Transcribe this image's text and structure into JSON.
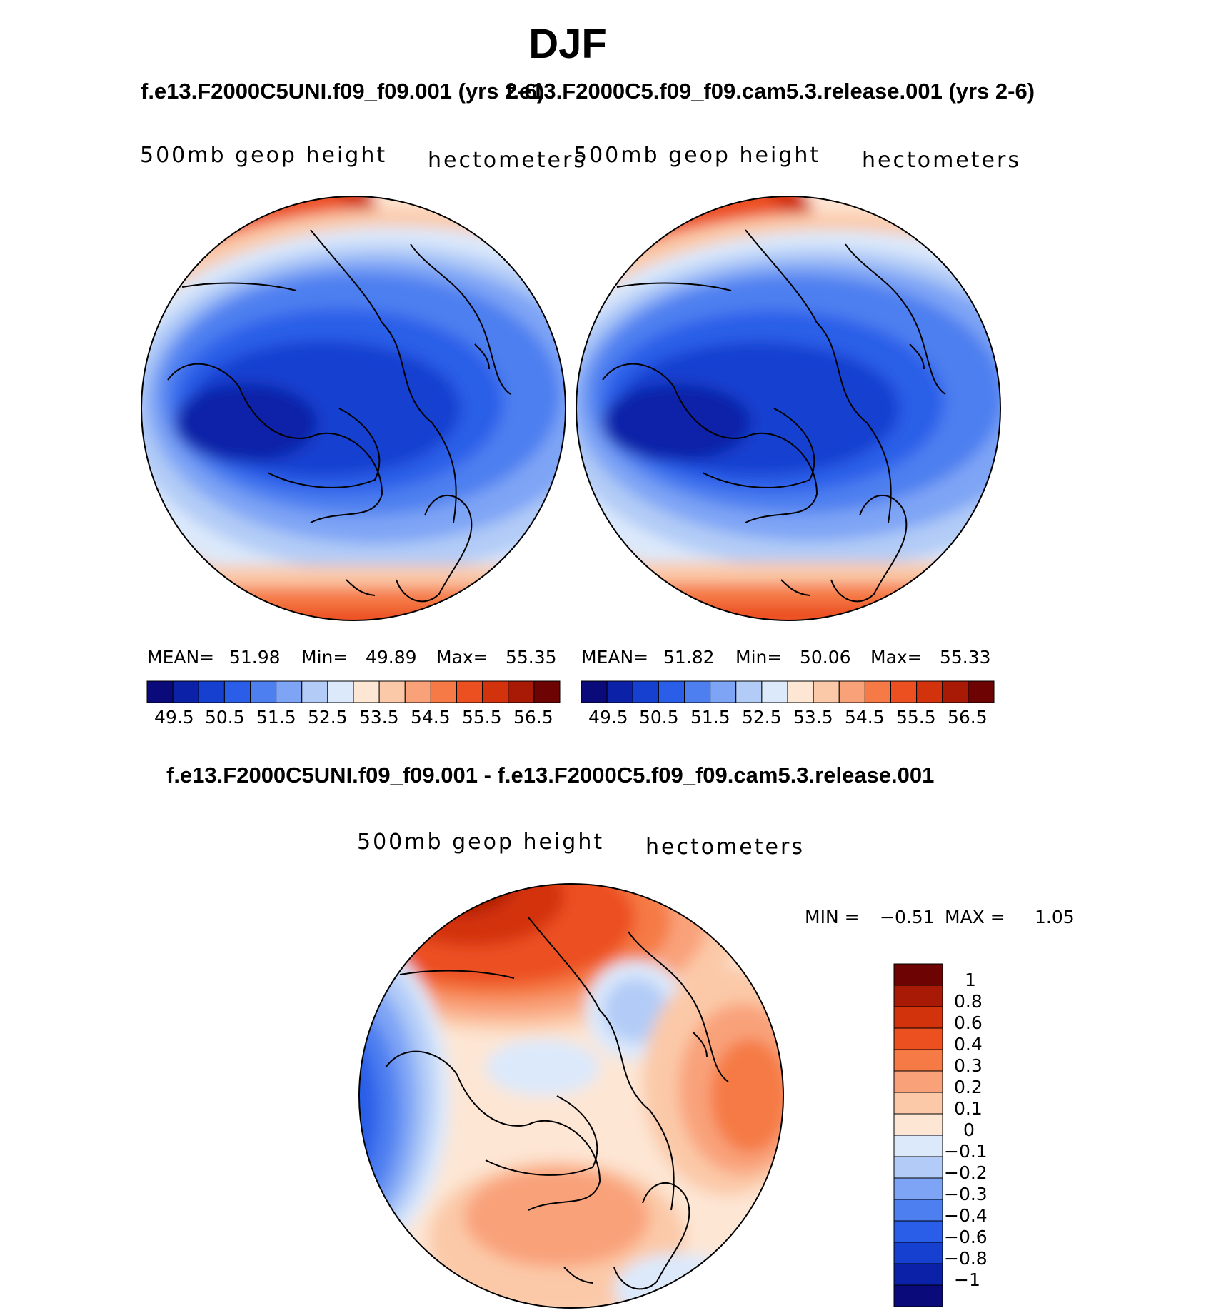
{
  "title": "DJF",
  "panels": [
    {
      "case_title": "f.e13.F2000C5UNI.f09_f09.001 (yrs 2-6)",
      "field_label": "500mb geop height",
      "units_label": "hectometers",
      "stats": {
        "mean_label": "MEAN=",
        "mean": "51.98",
        "min_label": "Min=",
        "min": "49.89",
        "max_label": "Max=",
        "max": "55.35"
      }
    },
    {
      "case_title": "f.e13.F2000C5.f09_f09.cam5.3.release.001 (yrs 2-6)",
      "field_label": "500mb geop height",
      "units_label": "hectometers",
      "stats": {
        "mean_label": "MEAN=",
        "mean": "51.82",
        "min_label": "Min=",
        "min": "50.06",
        "max_label": "Max=",
        "max": "55.33"
      }
    }
  ],
  "colorbar_ticks": [
    "49.5",
    "50.5",
    "51.5",
    "52.5",
    "53.5",
    "54.5",
    "55.5",
    "56.5"
  ],
  "colorbar_colors": [
    "#0a0a7a",
    "#0b22a8",
    "#1640d0",
    "#2b5ee8",
    "#4d7ff0",
    "#7ea4f5",
    "#b2ccf7",
    "#dce9fb",
    "#fde6d4",
    "#fbc9a8",
    "#f9a27a",
    "#f57a45",
    "#ec5020",
    "#d3330c",
    "#a81a05",
    "#6e0303"
  ],
  "difference": {
    "title": "f.e13.F2000C5UNI.f09_f09.001 - f.e13.F2000C5.f09_f09.cam5.3.release.001",
    "field_label": "500mb geop height",
    "units_label": "hectometers",
    "min_label": "MIN =",
    "min": "−0.51",
    "max_label": "MAX =",
    "max": "1.05",
    "colorbar_labels": [
      "1",
      "0.8",
      "0.6",
      "0.4",
      "0.3",
      "0.2",
      "0.1",
      "0",
      "−0.1",
      "−0.2",
      "−0.3",
      "−0.4",
      "−0.6",
      "−0.8",
      "−1"
    ],
    "colorbar_colors": [
      "#6e0303",
      "#a81a05",
      "#d3330c",
      "#ec5020",
      "#f57a45",
      "#f9a27a",
      "#fbc9a8",
      "#fde6d4",
      "#dce9fb",
      "#b2ccf7",
      "#7ea4f5",
      "#4d7ff0",
      "#2b5ee8",
      "#1640d0",
      "#0b22a8",
      "#0a0a7a"
    ]
  },
  "colors": {
    "background": "#ffffff",
    "text": "#000000",
    "coastline": "#000000"
  }
}
